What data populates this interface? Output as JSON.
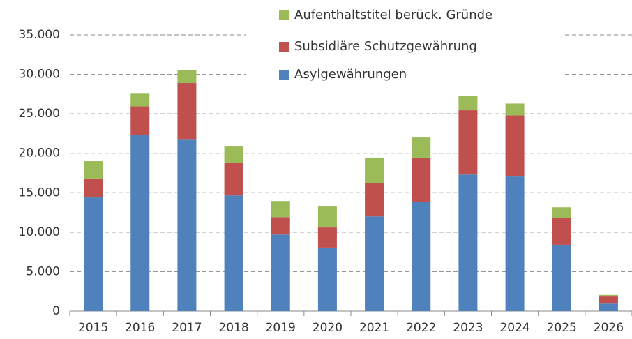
{
  "chart_data": {
    "type": "stacked_bar",
    "categories": [
      "2015",
      "2016",
      "2017",
      "2018",
      "2019",
      "2020",
      "2021",
      "2022",
      "2023",
      "2024",
      "2025",
      "2026"
    ],
    "series": [
      {
        "name": "Asylgewährungen",
        "color": "#4f81bd",
        "values": [
          14400,
          22350,
          21800,
          14650,
          9700,
          8050,
          12000,
          13800,
          17300,
          17050,
          8400,
          950
        ]
      },
      {
        "name": "Subsidiäre Schutzgewährung",
        "color": "#c0504d",
        "values": [
          2400,
          3600,
          7100,
          4150,
          2200,
          2550,
          4250,
          5650,
          8150,
          7750,
          3450,
          900
        ]
      },
      {
        "name": "Aufenthaltstitel berück. Gründe",
        "color": "#9bbb59",
        "values": [
          2200,
          1600,
          1600,
          2050,
          2050,
          2650,
          3200,
          2550,
          1850,
          1500,
          1300,
          200
        ]
      }
    ],
    "ylim": [
      0,
      35000
    ],
    "yticks": [
      0,
      {
        "value": 5000,
        "label": "5.000"
      },
      {
        "value": 10000,
        "label": "10.000"
      },
      {
        "value": 15000,
        "label": "15.000"
      },
      {
        "value": 20000,
        "label": "20.000"
      },
      {
        "value": 25000,
        "label": "25.000"
      },
      {
        "value": 30000,
        "label": "30.000"
      },
      {
        "value": 35000,
        "label": "35.000"
      }
    ],
    "grid": true,
    "legend": "top-right"
  }
}
